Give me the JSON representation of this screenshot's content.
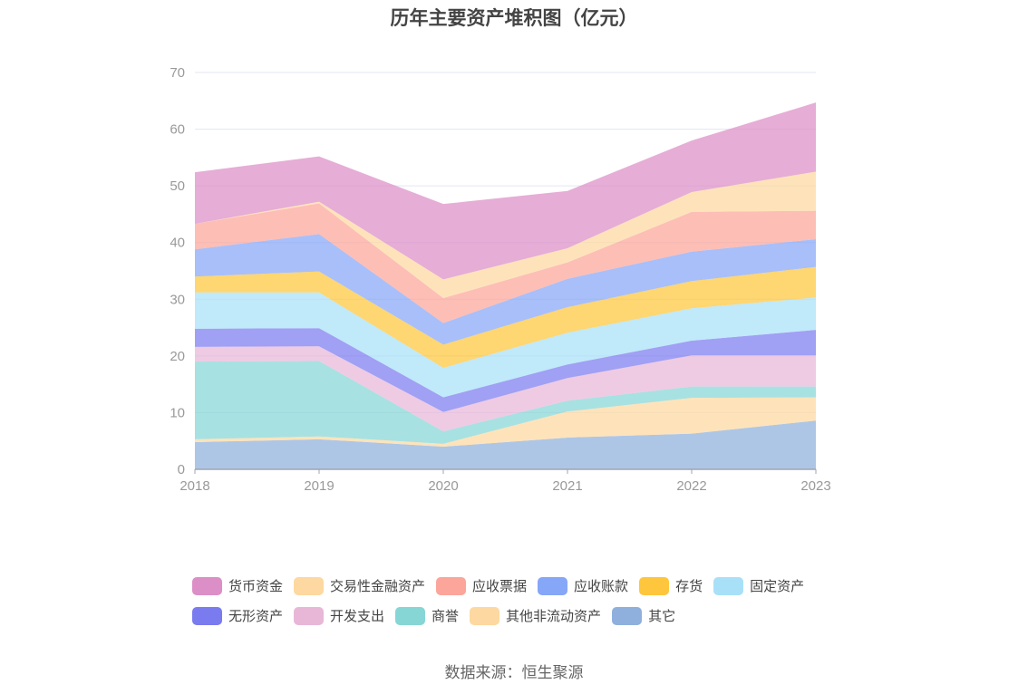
{
  "chart_data": {
    "type": "area",
    "stacked": true,
    "title": "历年主要资产堆积图（亿元）",
    "x": [
      "2018",
      "2019",
      "2020",
      "2021",
      "2022",
      "2023"
    ],
    "ylim": [
      0,
      70
    ],
    "yticks": [
      0,
      10,
      20,
      30,
      40,
      50,
      60,
      70
    ],
    "grid": true,
    "legend_position": "bottom",
    "series": [
      {
        "name": "其它",
        "color": "#8fb0dc",
        "values": [
          4.8,
          5.3,
          4.0,
          5.6,
          6.3,
          8.6
        ]
      },
      {
        "name": "其他非流动资产",
        "color": "#fdd8a0",
        "values": [
          0.5,
          0.5,
          0.5,
          4.6,
          6.3,
          4.1
        ]
      },
      {
        "name": "商誉",
        "color": "#86d6d6",
        "values": [
          13.7,
          13.3,
          2.2,
          1.9,
          2.0,
          1.9
        ]
      },
      {
        "name": "开发支出",
        "color": "#e8b7d8",
        "values": [
          2.6,
          2.6,
          3.4,
          4.0,
          5.5,
          5.5
        ]
      },
      {
        "name": "无形资产",
        "color": "#7b7bf0",
        "values": [
          3.2,
          3.2,
          2.6,
          2.4,
          2.6,
          4.5
        ]
      },
      {
        "name": "固定资产",
        "color": "#a8e0f8",
        "values": [
          6.4,
          6.3,
          5.2,
          5.6,
          5.7,
          5.7
        ]
      },
      {
        "name": "存货",
        "color": "#fdc63c",
        "values": [
          2.8,
          3.7,
          4.1,
          4.5,
          4.8,
          5.4
        ]
      },
      {
        "name": "应收账款",
        "color": "#86a6f7",
        "values": [
          4.8,
          6.6,
          3.8,
          5.0,
          5.2,
          4.9
        ]
      },
      {
        "name": "应收票据",
        "color": "#fca59a",
        "values": [
          4.5,
          5.4,
          4.4,
          2.9,
          7.0,
          5.0
        ]
      },
      {
        "name": "交易性金融资产",
        "color": "#fdd8a0",
        "values": [
          0,
          0.3,
          3.3,
          2.5,
          3.5,
          6.9
        ]
      },
      {
        "name": "货币资金",
        "color": "#dc8ec6",
        "values": [
          9.1,
          8.0,
          13.3,
          10.1,
          9.1,
          12.2
        ]
      }
    ]
  },
  "legend": {
    "row1": [
      {
        "label": "货币资金",
        "color": "#dc8ec6"
      },
      {
        "label": "交易性金融资产",
        "color": "#fdd8a0"
      },
      {
        "label": "应收票据",
        "color": "#fca59a"
      },
      {
        "label": "应收账款",
        "color": "#86a6f7"
      },
      {
        "label": "存货",
        "color": "#fdc63c"
      },
      {
        "label": "固定资产",
        "color": "#a8e0f8"
      }
    ],
    "row2": [
      {
        "label": "无形资产",
        "color": "#7b7bf0"
      },
      {
        "label": "开发支出",
        "color": "#e8b7d8"
      },
      {
        "label": "商誉",
        "color": "#86d6d6"
      },
      {
        "label": "其他非流动资产",
        "color": "#fdd8a0"
      },
      {
        "label": "其它",
        "color": "#8fb0dc"
      }
    ]
  },
  "source": "数据来源：恒生聚源"
}
